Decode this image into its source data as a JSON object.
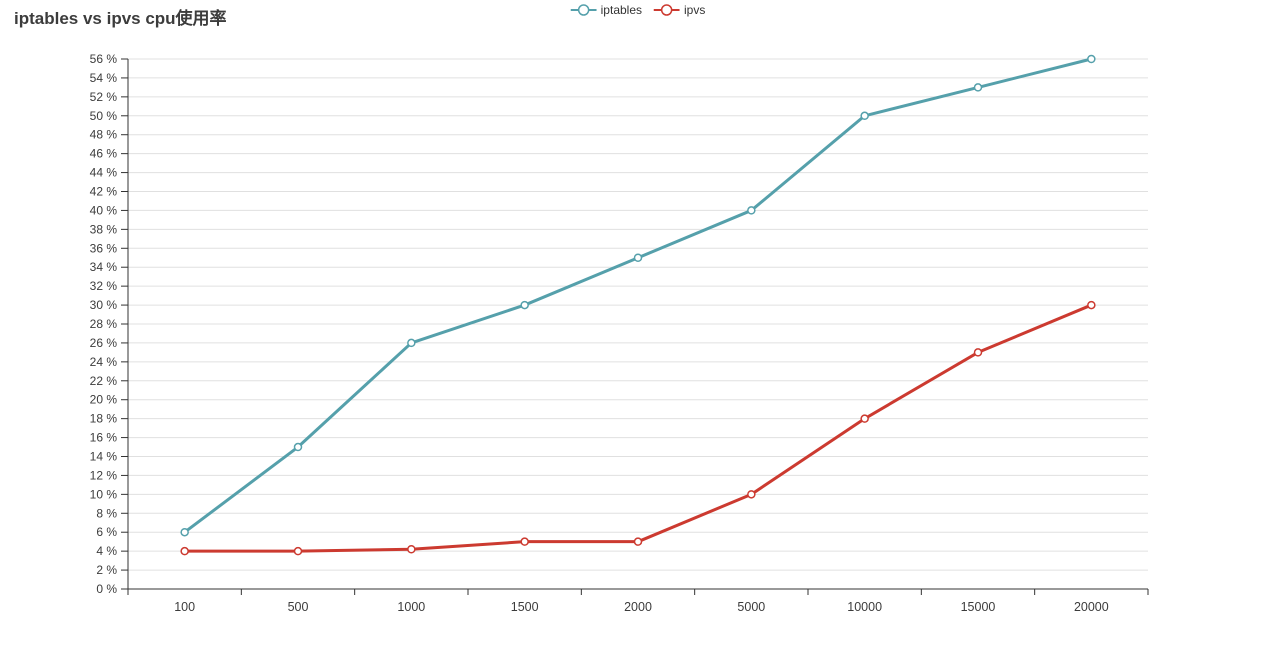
{
  "title": "iptables vs ipvs cpu使用率",
  "legend": {
    "position": "top-center",
    "items": [
      {
        "label": "iptables",
        "color": "#55a0ab"
      },
      {
        "label": "ipvs",
        "color": "#cc3a30"
      }
    ]
  },
  "chart_data": {
    "type": "line",
    "title": "iptables vs ipvs cpu使用率",
    "categories": [
      "100",
      "500",
      "1000",
      "1500",
      "2000",
      "5000",
      "10000",
      "15000",
      "20000"
    ],
    "series": [
      {
        "name": "iptables",
        "color": "#55a0ab",
        "values": [
          6,
          15,
          26,
          30,
          35,
          40,
          50,
          53,
          56
        ]
      },
      {
        "name": "ipvs",
        "color": "#cc3a30",
        "values": [
          4,
          4,
          4.2,
          5,
          5,
          10,
          18,
          25,
          30
        ]
      }
    ],
    "xlabel": "",
    "ylabel": "",
    "ylim": [
      0,
      56
    ],
    "ytick_step": 2,
    "ytick_suffix": " %",
    "grid": true,
    "legend_position": "top-center",
    "marker": "empty-circle"
  },
  "colors": {
    "axis": "#333333",
    "gridline": "#e0e0e0",
    "tick_text": "#3c3c3c",
    "title_text": "#3c3c3c",
    "background": "#ffffff"
  }
}
